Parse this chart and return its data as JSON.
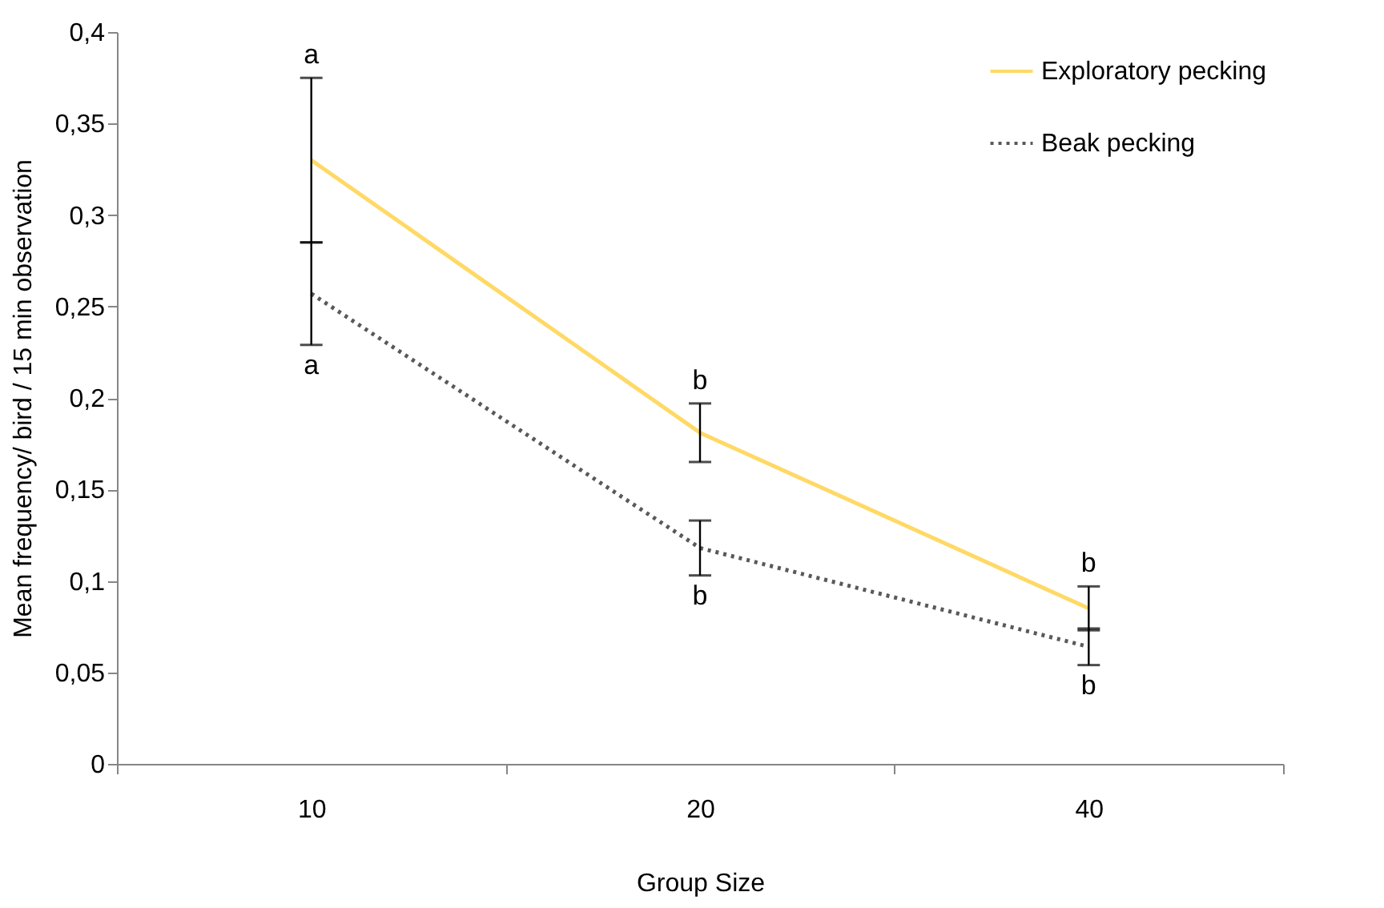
{
  "chart_data": {
    "type": "line",
    "xlabel": "Group Size",
    "ylabel": "Mean frequency/ bird / 15 min observation",
    "categories": [
      "10",
      "20",
      "40"
    ],
    "series": [
      {
        "name": "Exploratory pecking",
        "color": "#ffd966",
        "line_style": "solid",
        "values": [
          0.33,
          0.181,
          0.085
        ],
        "errors": [
          0.045,
          0.016,
          0.012
        ]
      },
      {
        "name": "Beak pecking",
        "color": "#595959",
        "line_style": "dotted",
        "values": [
          0.257,
          0.118,
          0.064
        ],
        "errors": [
          0.028,
          0.015,
          0.01
        ]
      }
    ],
    "ylim": [
      0,
      0.4
    ],
    "yticks": [
      {
        "value": 0,
        "label": "0"
      },
      {
        "value": 0.05,
        "label": "0,05"
      },
      {
        "value": 0.1,
        "label": "0,1"
      },
      {
        "value": 0.15,
        "label": "0,15"
      },
      {
        "value": 0.2,
        "label": "0,2"
      },
      {
        "value": 0.25,
        "label": "0,25"
      },
      {
        "value": 0.3,
        "label": "0,3"
      },
      {
        "value": 0.35,
        "label": "0,35"
      },
      {
        "value": 0.4,
        "label": "0,4"
      }
    ],
    "annotations": [
      {
        "text": "a",
        "x": "10",
        "y": 0.375
      },
      {
        "text": "a",
        "x": "10",
        "y": 0.229
      },
      {
        "text": "b",
        "x": "20",
        "y": 0.197
      },
      {
        "text": "b",
        "x": "20",
        "y": 0.103
      },
      {
        "text": "b",
        "x": "40",
        "y": 0.097
      },
      {
        "text": "b",
        "x": "40",
        "y": 0.054
      }
    ],
    "grid": false,
    "legend": "top right",
    "marker": "none"
  }
}
